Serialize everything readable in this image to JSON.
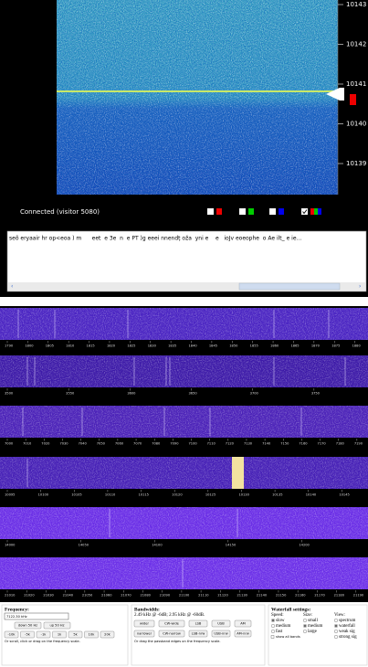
{
  "top": {
    "freq_scale": [
      "10143",
      "10142",
      "10141",
      "10140",
      "10139"
    ],
    "status": "Connected (visitor 5080)",
    "chat_text": "seõ eryaair hr op<eoa ) m      eet  e 3e  n  e PT )g eeei nnendṭ oža  yni e    e   ioJv eoeophe  o Ae ilt_ e ie..."
  },
  "bands": [
    {
      "labels": [
        "1790",
        "1800",
        "1805",
        "1810",
        "1815",
        "1820",
        "1825",
        "1830",
        "1835",
        "1840",
        "1845",
        "1850",
        "1855",
        "1860",
        "1865",
        "1870",
        "1875",
        "1880"
      ]
    },
    {
      "labels": [
        "3500",
        "3550",
        "3600",
        "3650",
        "3700",
        "3750"
      ]
    },
    {
      "labels": [
        "7000",
        "7010",
        "7020",
        "7030",
        "7040",
        "7050",
        "7060",
        "7070",
        "7080",
        "7090",
        "7100",
        "7110",
        "7120",
        "7130",
        "7140",
        "7150",
        "7160",
        "7170",
        "7180",
        "7190"
      ]
    },
    {
      "labels": [
        "10095",
        "10100",
        "10105",
        "10110",
        "10115",
        "10120",
        "10125",
        "10130",
        "10135",
        "10140",
        "10145"
      ]
    },
    {
      "labels": [
        "14000",
        "14050",
        "14100",
        "14150",
        "14200"
      ]
    },
    {
      "labels": [
        "21010",
        "21020",
        "21030",
        "21040",
        "21050",
        "21060",
        "21070",
        "21080",
        "21090",
        "21100",
        "21110",
        "21120",
        "21130",
        "21140",
        "21150",
        "21160",
        "21170",
        "21180",
        "21190"
      ]
    }
  ],
  "controls": {
    "frequency": {
      "title": "Frequency:",
      "input": "7122.30 kHz",
      "buttons_row1": [
        "down 50 Hz",
        "up 50 Hz"
      ],
      "buttons_row2": [
        "-10k",
        "-5k",
        "-1k",
        "1k",
        "5k",
        "10k",
        "20k"
      ],
      "note": "Or scroll, click or drag on the frequency scale."
    },
    "bandwidth": {
      "title": "Bandwidth:",
      "value": "2.49 kHz @ -6dB; 2.95 kHz @ -60dB.",
      "buttons_row1": [
        "wider",
        "CW-wide",
        "LSB",
        "USB",
        "AM"
      ],
      "buttons_row2": [
        "narrower",
        "CW-narrow",
        "LSB-nrw",
        "USB-nrw",
        "AM-nrw"
      ],
      "note": "Or drag the passband edges on the frequency scale."
    },
    "waterfall": {
      "title": "Waterfall settings:",
      "speed": {
        "title": "Speed:",
        "options": [
          "slow",
          "medium",
          "fast"
        ]
      },
      "size": {
        "title": "Size:",
        "options": [
          "small",
          "medium",
          "large"
        ]
      },
      "view": {
        "title": "View:",
        "options": [
          "spectrum",
          "waterfall",
          "weak sig",
          "strong sig"
        ]
      },
      "extra": "show all bands"
    }
  }
}
